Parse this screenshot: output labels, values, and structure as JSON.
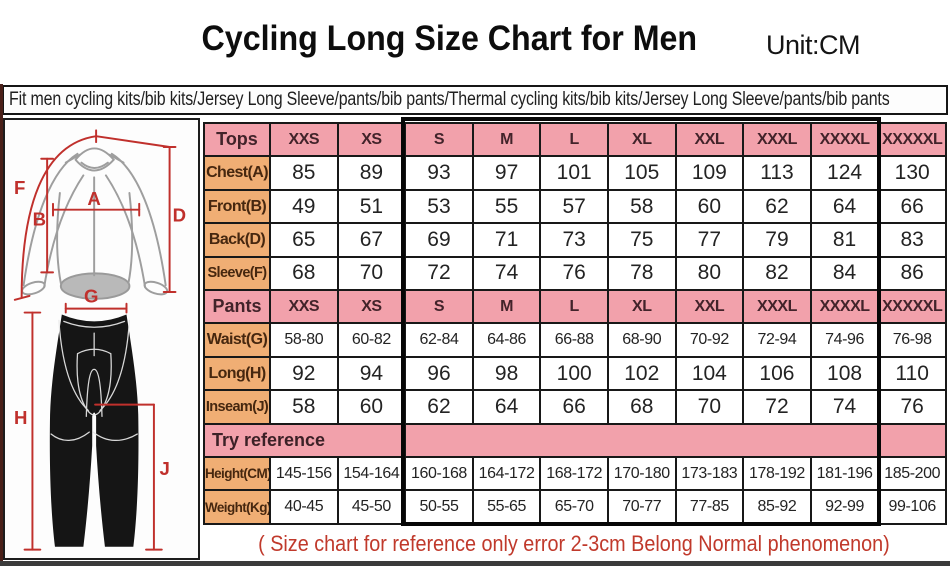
{
  "page": {
    "title": "Cycling Long Size Chart for Men",
    "unit_label": "Unit:CM",
    "subtitle": "Fit men cycling kits/bib kits/Jersey Long Sleeve/pants/bib pants/Thermal cycling kits/bib kits/Jersey Long Sleeve/pants/bib pants",
    "footnote": "( Size chart for reference only  error 2-3cm  Belong Normal phenomenon)"
  },
  "colors": {
    "header_pink": "#f2a1ab",
    "label_orange": "#f0ae74",
    "annotation_red": "#c0302c",
    "footnote_red": "#c0392b",
    "frame_black": "#060606",
    "pants_black": "#151515"
  },
  "diagram": {
    "labels": {
      "chest_width": "A",
      "front_length": "B",
      "back_length": "D",
      "sleeve_length": "F",
      "waist": "G",
      "pants_length": "H",
      "inseam": "J"
    }
  },
  "chart_data": {
    "type": "table",
    "title": "Cycling Long Size Chart for Men",
    "unit": "CM",
    "size_columns": [
      "XXS",
      "XS",
      "S",
      "M",
      "L",
      "XL",
      "XXL",
      "XXXL",
      "XXXXL",
      "XXXXXL"
    ],
    "sections": [
      {
        "header": "Tops",
        "rows": [
          {
            "label": "Chest(A)",
            "values": [
              85,
              89,
              93,
              97,
              101,
              105,
              109,
              113,
              124,
              130
            ]
          },
          {
            "label": "Front(B)",
            "values": [
              49,
              51,
              53,
              55,
              57,
              58,
              60,
              62,
              64,
              66
            ]
          },
          {
            "label": "Back(D)",
            "values": [
              65,
              67,
              69,
              71,
              73,
              75,
              77,
              79,
              81,
              83
            ]
          },
          {
            "label": "Sleeve(F)",
            "values": [
              68,
              70,
              72,
              74,
              76,
              78,
              80,
              82,
              84,
              86
            ]
          }
        ]
      },
      {
        "header": "Pants",
        "rows": [
          {
            "label": "Waist(G)",
            "values": [
              "58-80",
              "60-82",
              "62-84",
              "64-86",
              "66-88",
              "68-90",
              "70-92",
              "72-94",
              "74-96",
              "76-98"
            ]
          },
          {
            "label": "Long(H)",
            "values": [
              92,
              94,
              96,
              98,
              100,
              102,
              104,
              106,
              108,
              110
            ]
          },
          {
            "label": "Inseam(J)",
            "values": [
              58,
              60,
              62,
              64,
              66,
              68,
              70,
              72,
              74,
              76
            ]
          }
        ]
      },
      {
        "header": "Try reference",
        "full_width_header": true,
        "rows": [
          {
            "label": "Height(CM)",
            "values": [
              "145-156",
              "154-164",
              "160-168",
              "164-172",
              "168-172",
              "170-180",
              "173-183",
              "178-192",
              "181-196",
              "185-200"
            ]
          },
          {
            "label": "Weight(Kg)",
            "values": [
              "40-45",
              "45-50",
              "50-55",
              "55-65",
              "65-70",
              "70-77",
              "77-85",
              "85-92",
              "92-99",
              "99-106"
            ]
          }
        ]
      }
    ]
  }
}
